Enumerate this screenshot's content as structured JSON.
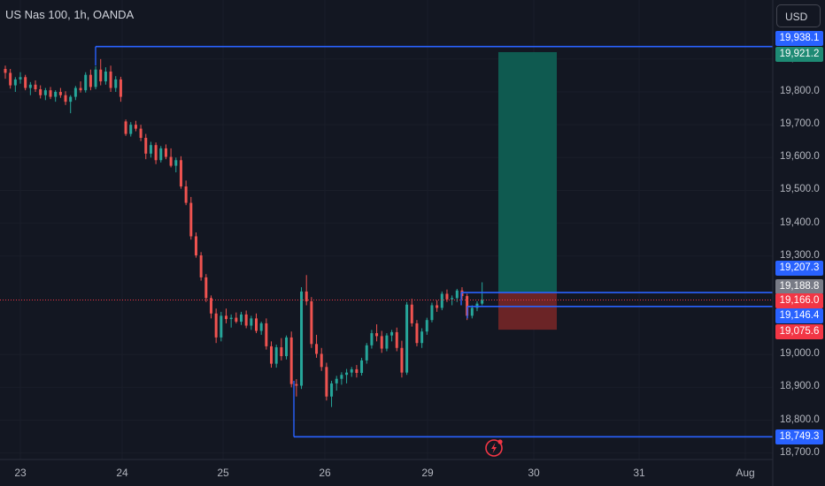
{
  "header": {
    "title": "US Nas 100, 1h, OANDA",
    "currency_button": "USD"
  },
  "colors": {
    "background": "#131722",
    "up": "#26a69a",
    "down": "#ef5350",
    "line": "#2962ff",
    "target": "#0f5a50",
    "stop": "#6b2426"
  },
  "price_tags": [
    {
      "name": "resistance-tag",
      "value": "19,938.1",
      "color": "#2962ff"
    },
    {
      "name": "target-tag",
      "value": "19,921.2",
      "color": "#1e8a74"
    },
    {
      "name": "entry-upper-tag",
      "value": "19,207.3",
      "color": "#2962ff"
    },
    {
      "name": "entry-tag",
      "value": "19,188.8",
      "color": "#787b86"
    },
    {
      "name": "current-price-tag",
      "value": "19,166.0",
      "color": "#f23645"
    },
    {
      "name": "entry-lower-tag",
      "value": "19,146.4",
      "color": "#2962ff"
    },
    {
      "name": "stop-tag",
      "value": "19,075.6",
      "color": "#f23645"
    },
    {
      "name": "support-tag",
      "value": "18,749.3",
      "color": "#2962ff"
    }
  ],
  "chart_data": {
    "type": "candlestick",
    "title": "US Nas 100, 1h, OANDA",
    "y_ticks": [
      "19,900.0",
      "19,800.0",
      "19,700.0",
      "19,600.0",
      "19,500.0",
      "19,400.0",
      "19,300.0",
      "19,000.0",
      "18,900.0",
      "18,800.0",
      "18,700.0"
    ],
    "x_ticks": [
      "23",
      "24",
      "25",
      "26",
      "29",
      "30",
      "31",
      "Aug"
    ],
    "ylim": [
      18690,
      20000
    ],
    "horizontal_levels": [
      19938.1,
      19188.8,
      19146.4,
      18749.3
    ],
    "current_price": 19166.0,
    "position": {
      "entry": 19188.8,
      "target": 19921.2,
      "stop": 19075.6
    },
    "candles": [
      [
        19870,
        19880,
        19840,
        19858
      ],
      [
        19858,
        19870,
        19810,
        19820
      ],
      [
        19820,
        19845,
        19800,
        19838
      ],
      [
        19838,
        19860,
        19825,
        19845
      ],
      [
        19845,
        19852,
        19805,
        19812
      ],
      [
        19812,
        19830,
        19790,
        19822
      ],
      [
        19822,
        19835,
        19800,
        19808
      ],
      [
        19808,
        19820,
        19780,
        19790
      ],
      [
        19790,
        19812,
        19775,
        19805
      ],
      [
        19805,
        19815,
        19778,
        19785
      ],
      [
        19785,
        19805,
        19770,
        19800
      ],
      [
        19800,
        19812,
        19782,
        19790
      ],
      [
        19790,
        19802,
        19760,
        19770
      ],
      [
        19770,
        19790,
        19735,
        19785
      ],
      [
        19785,
        19818,
        19775,
        19812
      ],
      [
        19812,
        19832,
        19798,
        19805
      ],
      [
        19805,
        19860,
        19798,
        19852
      ],
      [
        19852,
        19868,
        19805,
        19815
      ],
      [
        19815,
        19878,
        19808,
        19868
      ],
      [
        19868,
        19900,
        19820,
        19832
      ],
      [
        19832,
        19875,
        19822,
        19862
      ],
      [
        19862,
        19880,
        19800,
        19812
      ],
      [
        19812,
        19848,
        19800,
        19838
      ],
      [
        19838,
        19846,
        19770,
        19785
      ],
      [
        19710,
        19716,
        19666,
        19672
      ],
      [
        19672,
        19708,
        19664,
        19700
      ],
      [
        19700,
        19712,
        19680,
        19688
      ],
      [
        19688,
        19700,
        19650,
        19660
      ],
      [
        19660,
        19672,
        19595,
        19612
      ],
      [
        19612,
        19648,
        19600,
        19638
      ],
      [
        19638,
        19646,
        19580,
        19592
      ],
      [
        19592,
        19635,
        19585,
        19628
      ],
      [
        19628,
        19640,
        19595,
        19602
      ],
      [
        19602,
        19628,
        19570,
        19575
      ],
      [
        19575,
        19600,
        19555,
        19592
      ],
      [
        19592,
        19604,
        19505,
        19512
      ],
      [
        19512,
        19530,
        19455,
        19462
      ],
      [
        19462,
        19480,
        19350,
        19360
      ],
      [
        19360,
        19372,
        19295,
        19302
      ],
      [
        19302,
        19312,
        19225,
        19235
      ],
      [
        19235,
        19245,
        19160,
        19172
      ],
      [
        19172,
        19180,
        19110,
        19125
      ],
      [
        19125,
        19140,
        19035,
        19052
      ],
      [
        19052,
        19130,
        19040,
        19118
      ],
      [
        19118,
        19140,
        19095,
        19108
      ],
      [
        19108,
        19122,
        19082,
        19112
      ],
      [
        19112,
        19128,
        19095,
        19100
      ],
      [
        19100,
        19130,
        19090,
        19122
      ],
      [
        19122,
        19134,
        19080,
        19088
      ],
      [
        19088,
        19118,
        19075,
        19110
      ],
      [
        19110,
        19125,
        19065,
        19072
      ],
      [
        19072,
        19100,
        19060,
        19095
      ],
      [
        19095,
        19110,
        19015,
        19025
      ],
      [
        19025,
        19040,
        18960,
        18972
      ],
      [
        18972,
        19030,
        18960,
        19022
      ],
      [
        19022,
        19050,
        18982,
        18995
      ],
      [
        18995,
        19058,
        18985,
        19052
      ],
      [
        19052,
        19070,
        18900,
        18910
      ],
      [
        18910,
        18925,
        18872,
        18905
      ],
      [
        18905,
        19205,
        18895,
        19192
      ],
      [
        19192,
        19242,
        19150,
        19162
      ],
      [
        19162,
        19175,
        19020,
        19032
      ],
      [
        19032,
        19060,
        18990,
        19002
      ],
      [
        19002,
        19020,
        18950,
        18962
      ],
      [
        18962,
        18975,
        18860,
        18872
      ],
      [
        18872,
        18920,
        18840,
        18912
      ],
      [
        18912,
        18935,
        18890,
        18926
      ],
      [
        18926,
        18946,
        18908,
        18938
      ],
      [
        18938,
        18956,
        18912,
        18945
      ],
      [
        18945,
        18962,
        18932,
        18955
      ],
      [
        18955,
        18968,
        18930,
        18944
      ],
      [
        18944,
        18990,
        18936,
        18982
      ],
      [
        18982,
        19035,
        18972,
        19028
      ],
      [
        19028,
        19075,
        19018,
        19065
      ],
      [
        19065,
        19092,
        19040,
        19056
      ],
      [
        19056,
        19072,
        19005,
        19018
      ],
      [
        19018,
        19065,
        19010,
        19058
      ],
      [
        19058,
        19075,
        19040,
        19068
      ],
      [
        19068,
        19082,
        19010,
        19020
      ],
      [
        19020,
        19042,
        18930,
        18945
      ],
      [
        18945,
        19160,
        18938,
        19152
      ],
      [
        19152,
        19170,
        19085,
        19095
      ],
      [
        19095,
        19105,
        19025,
        19035
      ],
      [
        19035,
        19080,
        19020,
        19070
      ],
      [
        19070,
        19112,
        19060,
        19105
      ],
      [
        19105,
        19158,
        19098,
        19150
      ],
      [
        19150,
        19165,
        19130,
        19142
      ],
      [
        19142,
        19192,
        19135,
        19185
      ],
      [
        19185,
        19198,
        19160,
        19168
      ],
      [
        19168,
        19180,
        19150,
        19172
      ],
      [
        19172,
        19200,
        19160,
        19195
      ],
      [
        19195,
        19205,
        19168,
        19178
      ],
      [
        19178,
        19185,
        19105,
        19118
      ],
      [
        19118,
        19150,
        19110,
        19142
      ],
      [
        19142,
        19162,
        19132,
        19155
      ],
      [
        19155,
        19220,
        19150,
        19166
      ]
    ]
  }
}
